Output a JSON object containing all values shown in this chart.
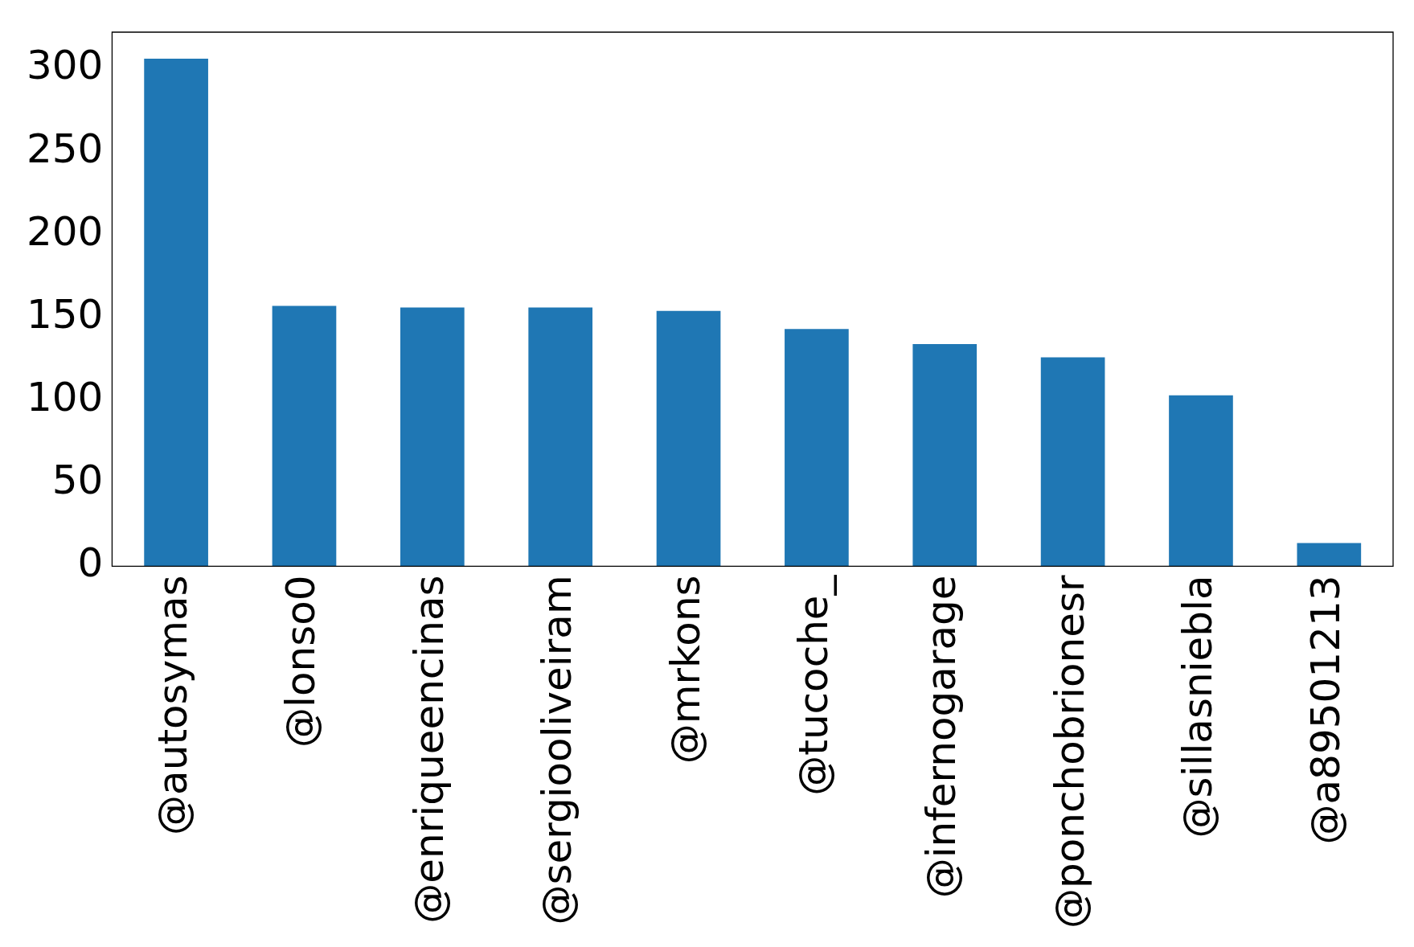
{
  "chart_data": {
    "type": "bar",
    "categories": [
      "@autosymas",
      "@lonso0",
      "@enriqueencinas",
      "@sergiooliveiram",
      "@mrkons",
      "@tucoche_",
      "@infernogarage",
      "@ponchobrionesr",
      "@sillasniebla",
      "@a89501213"
    ],
    "values": [
      306,
      157,
      156,
      156,
      154,
      143,
      134,
      126,
      103,
      14
    ],
    "color": "#1f77b4",
    "ylim": [
      0,
      322
    ],
    "yticks": [
      0,
      50,
      100,
      150,
      200,
      250,
      300
    ],
    "grid": false,
    "legend": false
  }
}
